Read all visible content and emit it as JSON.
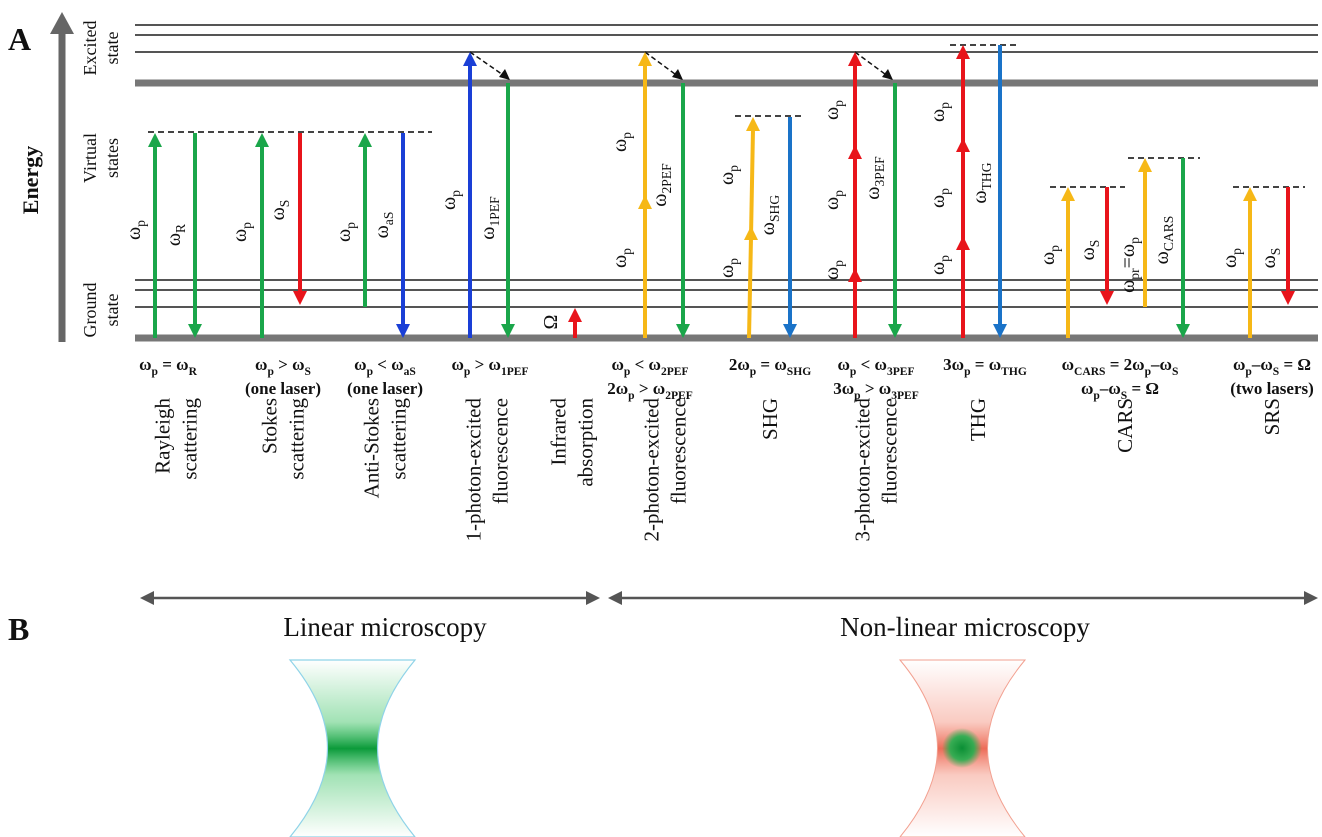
{
  "panel_labels": [
    "A",
    "B"
  ],
  "energy_label": "Energy",
  "level_labels": [
    [
      "Excited",
      "state"
    ],
    [
      "Virtual",
      "states"
    ],
    [
      "Ground",
      "state"
    ]
  ],
  "processes": [
    {
      "name": [
        "Rayleigh",
        "scattering"
      ],
      "condition": [
        [
          "ω",
          "p",
          " = ω",
          "R"
        ]
      ],
      "arrow_labels": [
        [
          "ω",
          "p"
        ],
        [
          "ω",
          "R"
        ]
      ]
    },
    {
      "name": [
        "Stokes",
        "scattering"
      ],
      "condition": [
        [
          "ω",
          "p",
          " > ω",
          "S"
        ],
        [
          "(one laser)"
        ]
      ],
      "arrow_labels": [
        [
          "ω",
          "p"
        ],
        [
          "ω",
          "S"
        ]
      ]
    },
    {
      "name": [
        "Anti-Stokes",
        "scattering"
      ],
      "condition": [
        [
          "ω",
          "p",
          " < ω",
          "aS"
        ],
        [
          "(one laser)"
        ]
      ],
      "arrow_labels": [
        [
          "ω",
          "p"
        ],
        [
          "ω",
          "aS"
        ]
      ]
    },
    {
      "name": [
        "1-photon-excited",
        "fluorescence"
      ],
      "condition": [
        [
          "ω",
          "p",
          " > ω",
          "1PEF"
        ]
      ],
      "arrow_labels": [
        [
          "ω",
          "p"
        ],
        [
          "ω",
          "1PEF"
        ]
      ]
    },
    {
      "name": [
        "Infrared",
        "absorption"
      ],
      "condition": [],
      "arrow_labels": [
        [
          "Ω"
        ]
      ]
    },
    {
      "name": [
        "2-photon-excited",
        "fluorescence"
      ],
      "condition": [
        [
          "ω",
          "p",
          " < ω",
          "2PEF"
        ],
        [
          "2ω",
          "p",
          " > ω",
          "2PEF"
        ]
      ],
      "arrow_labels": [
        [
          "ω",
          "p"
        ],
        [
          "ω",
          "p"
        ],
        [
          "ω",
          "2PEF"
        ]
      ]
    },
    {
      "name": [
        "SHG"
      ],
      "condition": [
        [
          "2ω",
          "p",
          " = ω",
          "SHG"
        ]
      ],
      "arrow_labels": [
        [
          "ω",
          "p"
        ],
        [
          "ω",
          "p"
        ],
        [
          "ω",
          "SHG"
        ]
      ]
    },
    {
      "name": [
        "3-photon-excited",
        "fluorescence"
      ],
      "condition": [
        [
          "ω",
          "p",
          " < ω",
          "3PEF"
        ],
        [
          "3ω",
          "p",
          " > ω",
          "3PEF"
        ]
      ],
      "arrow_labels": [
        [
          "ω",
          "p"
        ],
        [
          "ω",
          "p"
        ],
        [
          "ω",
          "p"
        ],
        [
          "ω",
          "3PEF"
        ]
      ]
    },
    {
      "name": [
        "THG"
      ],
      "condition": [
        [
          "3ω",
          "p",
          " = ω",
          "THG"
        ]
      ],
      "arrow_labels": [
        [
          "ω",
          "p"
        ],
        [
          "ω",
          "p"
        ],
        [
          "ω",
          "p"
        ],
        [
          "ω",
          "THG"
        ]
      ]
    },
    {
      "name": [
        "CARS"
      ],
      "condition": [
        [
          "ω",
          "CARS",
          " = 2ω",
          "p",
          "–ω",
          "S"
        ],
        [
          "ω",
          "p",
          "–ω",
          "S",
          " = Ω"
        ]
      ],
      "arrow_labels": [
        [
          "ω",
          "p"
        ],
        [
          "ω",
          "S"
        ],
        [
          "ω",
          "pr",
          "=ω",
          "p"
        ],
        [
          "ω",
          "CARS"
        ]
      ]
    },
    {
      "name": [
        "SRS"
      ],
      "condition": [
        [
          "ω",
          "p",
          "–ω",
          "S",
          " = Ω"
        ],
        [
          "(two lasers)"
        ]
      ],
      "arrow_labels": [
        [
          "ω",
          "p"
        ],
        [
          "ω",
          "S"
        ]
      ]
    }
  ],
  "regimes": [
    "Linear microscopy",
    "Non-linear microscopy"
  ]
}
